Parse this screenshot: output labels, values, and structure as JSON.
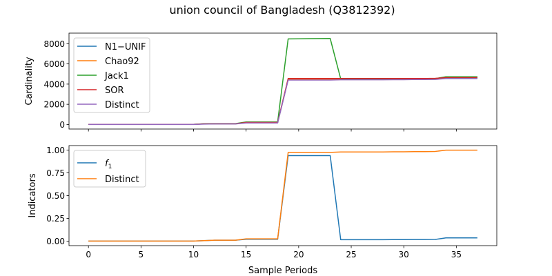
{
  "figure_title": "union council of Bangladesh (Q3812392)",
  "chart_data": [
    {
      "type": "line",
      "title": "",
      "xlabel": "",
      "ylabel": "Cardinality",
      "xlim": [
        -1.85,
        38.85
      ],
      "ylim": [
        -450,
        9050
      ],
      "x_ticks": [
        0,
        5,
        10,
        15,
        20,
        25,
        30,
        35
      ],
      "y_ticks": [
        0,
        2000,
        4000,
        6000,
        8000
      ],
      "y_tick_labels": [
        "0",
        "2000",
        "4000",
        "6000",
        "8000"
      ],
      "show_x_tick_labels": false,
      "grid": false,
      "legend_position": "upper-left",
      "x": [
        0,
        1,
        2,
        3,
        4,
        5,
        6,
        7,
        8,
        9,
        10,
        11,
        12,
        13,
        14,
        15,
        16,
        17,
        18,
        19,
        20,
        21,
        22,
        23,
        24,
        25,
        26,
        27,
        28,
        29,
        30,
        31,
        32,
        33,
        34,
        35,
        36,
        37
      ],
      "series": [
        {
          "name": "N1−UNIF",
          "color": "#1f77b4",
          "values": [
            10,
            10,
            10,
            10,
            10,
            10,
            10,
            10,
            10,
            10,
            10,
            50,
            60,
            60,
            60,
            170,
            170,
            170,
            170,
            4450,
            4450,
            4450,
            4450,
            4450,
            4480,
            4480,
            4480,
            4480,
            4480,
            4490,
            4490,
            4500,
            4500,
            4510,
            4610,
            4610,
            4610,
            4610
          ]
        },
        {
          "name": "Chao92",
          "color": "#ff7f0e",
          "values": [
            10,
            10,
            10,
            10,
            10,
            10,
            10,
            10,
            10,
            10,
            10,
            60,
            70,
            70,
            70,
            220,
            220,
            220,
            220,
            4450,
            4450,
            4450,
            4450,
            4450,
            4500,
            4500,
            4500,
            4500,
            4500,
            4510,
            4510,
            4520,
            4520,
            4530,
            4700,
            4700,
            4700,
            4700
          ]
        },
        {
          "name": "Jack1",
          "color": "#2ca02c",
          "values": [
            15,
            15,
            15,
            15,
            15,
            15,
            15,
            15,
            15,
            15,
            15,
            80,
            90,
            90,
            90,
            250,
            250,
            250,
            250,
            8480,
            8490,
            8500,
            8510,
            8520,
            4520,
            4520,
            4520,
            4520,
            4520,
            4530,
            4530,
            4540,
            4540,
            4550,
            4730,
            4730,
            4730,
            4730
          ]
        },
        {
          "name": "SOR",
          "color": "#d62728",
          "values": [
            10,
            10,
            10,
            10,
            10,
            10,
            10,
            10,
            10,
            10,
            10,
            60,
            70,
            70,
            70,
            200,
            200,
            200,
            200,
            4560,
            4560,
            4560,
            4560,
            4560,
            4560,
            4560,
            4560,
            4560,
            4560,
            4560,
            4560,
            4560,
            4560,
            4570,
            4640,
            4640,
            4640,
            4640
          ]
        },
        {
          "name": "Distinct",
          "color": "#9467bd",
          "values": [
            5,
            5,
            5,
            5,
            5,
            5,
            5,
            5,
            5,
            5,
            5,
            40,
            50,
            50,
            50,
            150,
            150,
            150,
            150,
            4400,
            4400,
            4400,
            4400,
            4400,
            4430,
            4430,
            4430,
            4430,
            4430,
            4440,
            4440,
            4450,
            4450,
            4460,
            4550,
            4550,
            4550,
            4550
          ]
        }
      ]
    },
    {
      "type": "line",
      "title": "",
      "xlabel": "Sample Periods",
      "ylabel": "Indicators",
      "xlim": [
        -1.85,
        38.85
      ],
      "ylim": [
        -0.05,
        1.05
      ],
      "x_ticks": [
        0,
        5,
        10,
        15,
        20,
        25,
        30,
        35
      ],
      "x_tick_labels": [
        "0",
        "5",
        "10",
        "15",
        "20",
        "25",
        "30",
        "35"
      ],
      "y_ticks": [
        0,
        0.25,
        0.5,
        0.75,
        1.0
      ],
      "y_tick_labels": [
        "0.00",
        "0.25",
        "0.50",
        "0.75",
        "1.00"
      ],
      "grid": false,
      "legend_position": "upper-left",
      "x": [
        0,
        1,
        2,
        3,
        4,
        5,
        6,
        7,
        8,
        9,
        10,
        11,
        12,
        13,
        14,
        15,
        16,
        17,
        18,
        19,
        20,
        21,
        22,
        23,
        24,
        25,
        26,
        27,
        28,
        29,
        30,
        31,
        32,
        33,
        34,
        35,
        36,
        37
      ],
      "series": [
        {
          "name": "f1",
          "label_main": "f",
          "label_sub": "1",
          "color": "#1f77b4",
          "values": [
            0,
            0,
            0,
            0,
            0,
            0,
            0,
            0,
            0,
            0,
            0,
            0.005,
            0.01,
            0.01,
            0.01,
            0.02,
            0.02,
            0.02,
            0.02,
            0.94,
            0.94,
            0.94,
            0.94,
            0.94,
            0.015,
            0.015,
            0.015,
            0.015,
            0.015,
            0.016,
            0.016,
            0.017,
            0.017,
            0.018,
            0.035,
            0.035,
            0.035,
            0.035
          ]
        },
        {
          "name": "Distinct",
          "label_main": "Distinct",
          "label_sub": "",
          "color": "#ff7f0e",
          "values": [
            0,
            0,
            0,
            0,
            0,
            0,
            0,
            0,
            0,
            0,
            0,
            0.005,
            0.01,
            0.01,
            0.01,
            0.025,
            0.025,
            0.025,
            0.025,
            0.975,
            0.975,
            0.975,
            0.975,
            0.975,
            0.98,
            0.98,
            0.98,
            0.98,
            0.98,
            0.982,
            0.982,
            0.984,
            0.984,
            0.986,
            1.0,
            1.0,
            1.0,
            1.0
          ]
        }
      ]
    }
  ]
}
